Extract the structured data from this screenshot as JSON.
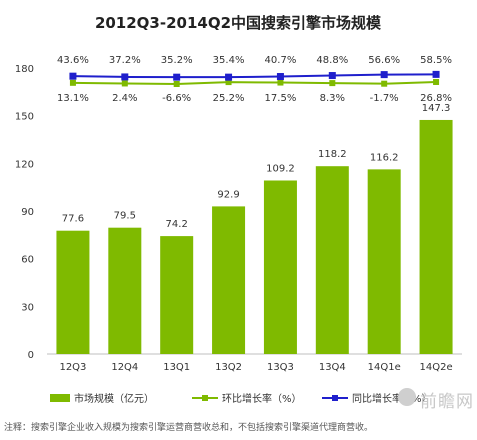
{
  "chart_data": {
    "type": "bar",
    "title": "2012Q3-2014Q2中国搜索引擎市场规模",
    "categories": [
      "12Q3",
      "12Q4",
      "13Q1",
      "13Q2",
      "13Q3",
      "13Q4",
      "14Q1e",
      "14Q2e"
    ],
    "ylim": [
      0,
      180
    ],
    "yticks": [
      0,
      30,
      60,
      90,
      120,
      150,
      180
    ],
    "grid": false,
    "series": [
      {
        "name": "市场规模（亿元）",
        "kind": "bar",
        "color": "#7fba00",
        "values": [
          77.6,
          79.5,
          74.2,
          92.9,
          109.2,
          118.2,
          116.2,
          147.3
        ],
        "labels": [
          "77.6",
          "79.5",
          "74.2",
          "92.9",
          "109.2",
          "118.2",
          "116.2",
          "147.3"
        ]
      },
      {
        "name": "环比增长率（%）",
        "kind": "line",
        "color": "#7fba00",
        "values": [
          13.1,
          2.4,
          -6.6,
          25.2,
          17.5,
          8.3,
          -1.7,
          26.8
        ],
        "labels": [
          "13.1%",
          "2.4%",
          "-6.6%",
          "25.2%",
          "17.5%",
          "8.3%",
          "-1.7%",
          "26.8%"
        ]
      },
      {
        "name": "同比增长率（%）",
        "kind": "line",
        "color": "#1f1fcc",
        "values": [
          43.6,
          37.2,
          35.2,
          35.4,
          40.7,
          48.8,
          56.6,
          58.5
        ],
        "labels": [
          "43.6%",
          "37.2%",
          "35.2%",
          "35.4%",
          "40.7%",
          "48.8%",
          "56.6%",
          "58.5%"
        ]
      }
    ],
    "legend_position": "bottom"
  },
  "footnote": "注释：搜索引擎企业收入规模为搜索引擎运营商营收总和，不包括搜索引擎渠道代理商营收。",
  "watermark": "前瞻网"
}
